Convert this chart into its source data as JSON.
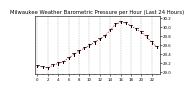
{
  "title": "Milwaukee Weather Barometric Pressure per Hour (Last 24 Hours)",
  "hours": [
    0,
    1,
    2,
    3,
    4,
    5,
    6,
    7,
    8,
    9,
    10,
    11,
    12,
    13,
    14,
    15,
    16,
    17,
    18,
    19,
    20,
    21,
    22,
    23
  ],
  "pressure": [
    29.12,
    29.1,
    29.08,
    29.14,
    29.18,
    29.22,
    29.3,
    29.38,
    29.45,
    29.52,
    29.58,
    29.65,
    29.72,
    29.8,
    29.92,
    30.05,
    30.1,
    30.08,
    30.02,
    29.95,
    29.88,
    29.78,
    29.65,
    29.55
  ],
  "ylim": [
    28.95,
    30.25
  ],
  "yticks": [
    29.0,
    29.2,
    29.4,
    29.6,
    29.8,
    30.0,
    30.2
  ],
  "ytick_labels": [
    "29.0",
    "29.2",
    "29.4",
    "29.6",
    "29.8",
    "30.0",
    "30.2"
  ],
  "xticks": [
    0,
    2,
    4,
    6,
    8,
    10,
    12,
    14,
    16,
    18,
    20,
    22
  ],
  "xtick_labels": [
    "0",
    "2",
    "4",
    "6",
    "8",
    "10",
    "12",
    "14",
    "16",
    "18",
    "20",
    "22"
  ],
  "line_color": "#cc0000",
  "marker_color": "#000000",
  "bg_color": "#ffffff",
  "plot_bg": "#ffffff",
  "grid_color": "#888888",
  "title_fontsize": 3.8,
  "tick_fontsize": 2.8,
  "vgrid_positions": [
    0,
    2,
    4,
    6,
    8,
    10,
    12,
    14,
    16,
    18,
    20,
    22
  ]
}
